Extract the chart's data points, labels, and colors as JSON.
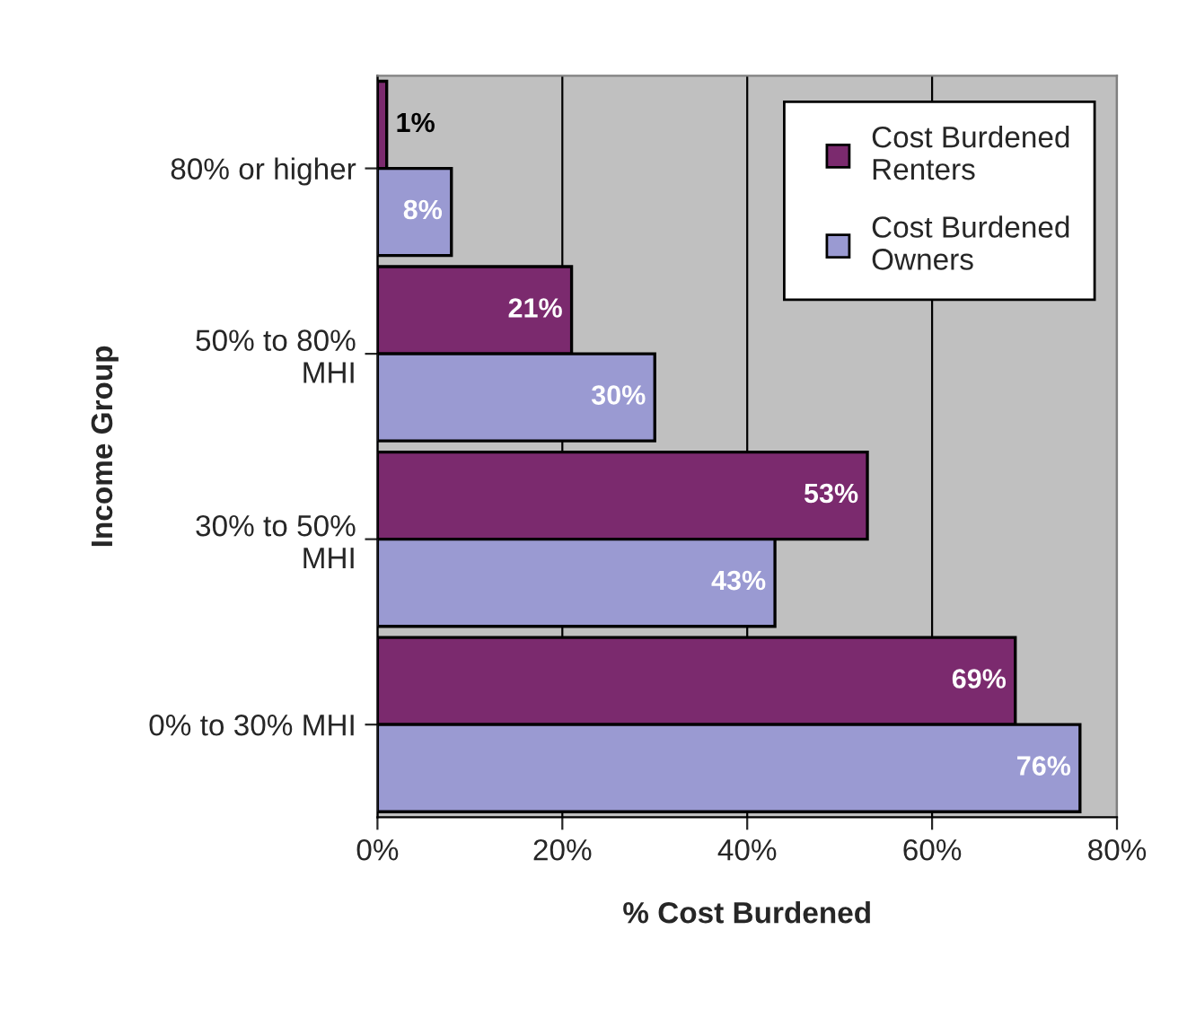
{
  "chart_data": {
    "type": "bar",
    "orientation": "horizontal",
    "xlabel": "% Cost Burdened",
    "ylabel": "Income Group",
    "categories": [
      "80% or higher",
      "50% to 80%\nMHI",
      "30% to 50%\nMHI",
      "0% to 30% MHI"
    ],
    "series": [
      {
        "name": "Cost Burdened\nRenters",
        "color": "#7b2a6e",
        "values": [
          1,
          21,
          53,
          69
        ],
        "value_labels": [
          "1%",
          "21%",
          "53%",
          "69%"
        ]
      },
      {
        "name": "Cost Burdened\nOwners",
        "color": "#9a9ad2",
        "values": [
          8,
          30,
          43,
          76
        ],
        "value_labels": [
          "8%",
          "30%",
          "43%",
          "76%"
        ]
      }
    ],
    "xlim": [
      0,
      80
    ],
    "xticks": [
      {
        "value": 0,
        "label": "0%"
      },
      {
        "value": 20,
        "label": "20%"
      },
      {
        "value": 40,
        "label": "40%"
      },
      {
        "value": 60,
        "label": "60%"
      },
      {
        "value": 80,
        "label": "80%"
      }
    ],
    "grid": "x",
    "legend": "top right"
  }
}
